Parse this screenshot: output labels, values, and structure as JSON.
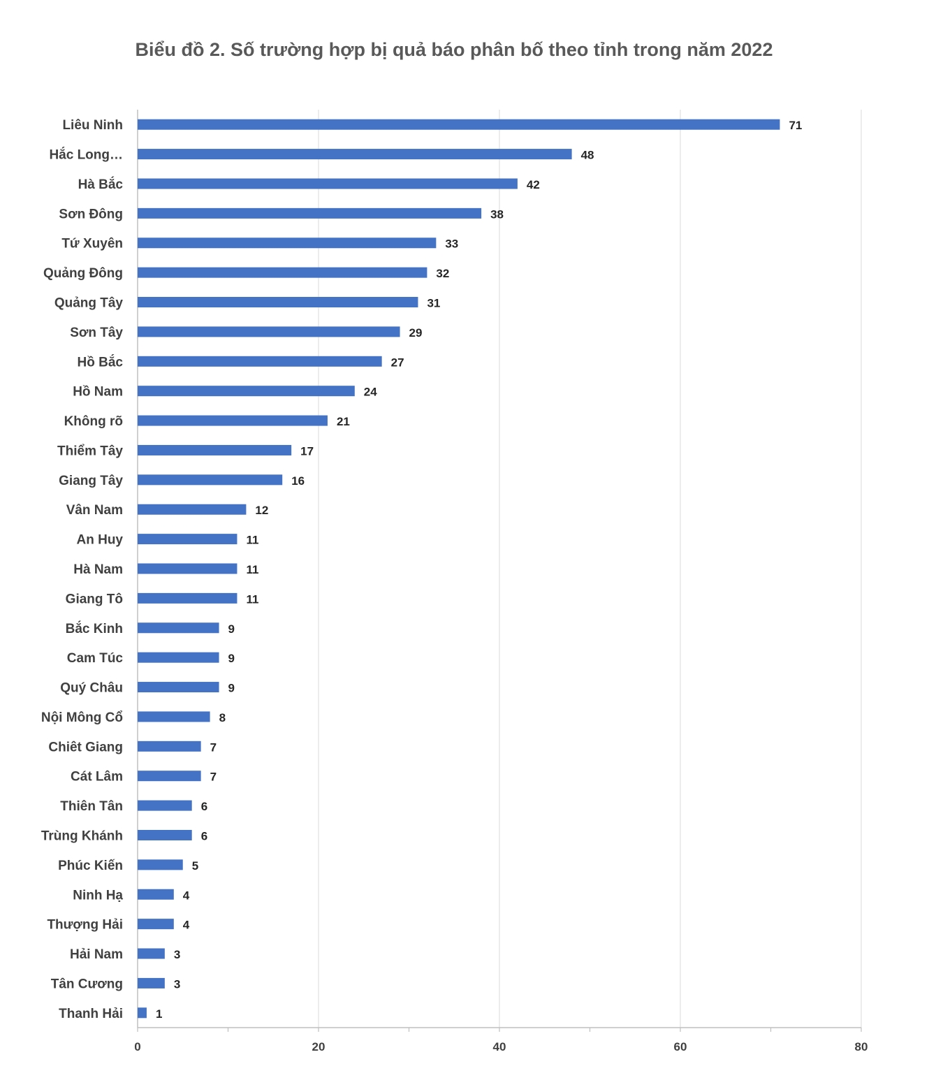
{
  "chart_data": {
    "type": "bar",
    "orientation": "horizontal",
    "title": "Biểu đồ 2. Số trường hợp bị quả báo phân bố theo tỉnh trong năm 2022",
    "categories": [
      "Liêu Ninh",
      "Hắc Long…",
      "Hà Bắc",
      "Sơn Đông",
      "Tứ Xuyên",
      "Quảng Đông",
      "Quảng Tây",
      "Sơn Tây",
      "Hồ Bắc",
      "Hồ Nam",
      "Không rõ",
      "Thiểm Tây",
      "Giang Tây",
      "Vân Nam",
      "An Huy",
      "Hà Nam",
      "Giang Tô",
      "Bắc Kinh",
      "Cam Túc",
      "Quý Châu",
      "Nội Mông Cổ",
      "Chiêt Giang",
      "Cát Lâm",
      "Thiên Tân",
      "Trùng Khánh",
      "Phúc Kiến",
      "Ninh Hạ",
      "Thượng Hải",
      "Hải Nam",
      "Tân Cương",
      "Thanh Hải"
    ],
    "values": [
      71,
      48,
      42,
      38,
      33,
      32,
      31,
      29,
      27,
      24,
      21,
      17,
      16,
      12,
      11,
      11,
      11,
      9,
      9,
      9,
      8,
      7,
      7,
      6,
      6,
      5,
      4,
      4,
      3,
      3,
      1
    ],
    "xlim": [
      0,
      80
    ],
    "xticks": [
      0,
      20,
      40,
      60,
      80
    ],
    "grid": true,
    "bar_color": "#4472C4",
    "data_labels": true
  }
}
